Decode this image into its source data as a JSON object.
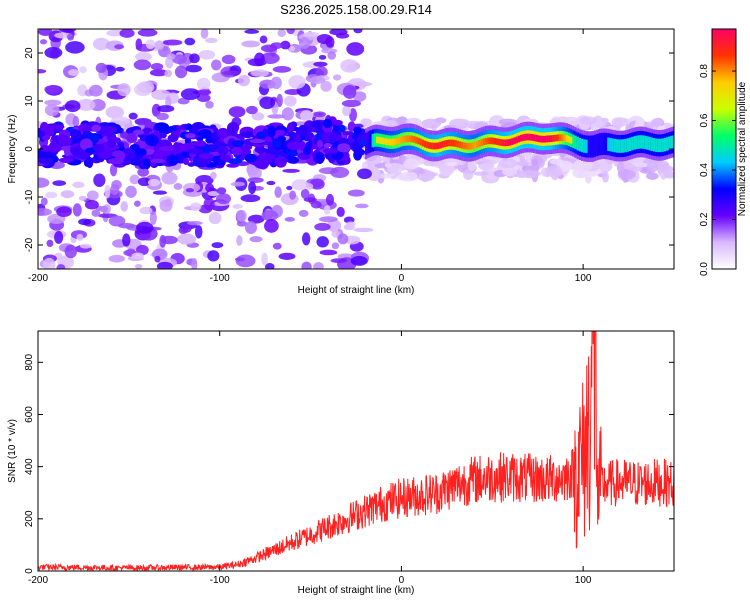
{
  "title": "S236.2025.158.00.29.R14",
  "chart_data": [
    {
      "type": "heatmap",
      "xlabel": "Height of straight line (km)",
      "ylabel": "Frequency (Hz)",
      "xlim": [
        -200,
        150
      ],
      "ylim": [
        -25,
        25
      ],
      "xticks": [
        -200,
        -100,
        0,
        100
      ],
      "yticks": [
        -20,
        -10,
        0,
        10,
        20
      ],
      "colorbar": {
        "label": "Normalized spectral amplitude",
        "range": [
          0.0,
          0.97
        ],
        "ticks": [
          "0.0",
          "0.2",
          "0.4",
          "0.6",
          "0.8"
        ],
        "colors": [
          "#ffffff",
          "#d9b8ff",
          "#6600ff",
          "#0000ff",
          "#00ccff",
          "#00ff66",
          "#ccff00",
          "#ffcc00",
          "#ff3300",
          "#ff0066"
        ]
      },
      "ridge": [
        {
          "x": -200,
          "f": 1.0,
          "amp": 0.25
        },
        {
          "x": -150,
          "f": 1.0,
          "amp": 0.28
        },
        {
          "x": -100,
          "f": 0.5,
          "amp": 0.3
        },
        {
          "x": -80,
          "f": 0.5,
          "amp": 0.35
        },
        {
          "x": -60,
          "f": 1.5,
          "amp": 0.3
        },
        {
          "x": -40,
          "f": 2.0,
          "amp": 0.28
        },
        {
          "x": -20,
          "f": 1.0,
          "amp": 0.3
        },
        {
          "x": -15,
          "f": 1.5,
          "amp": 0.6
        },
        {
          "x": 0,
          "f": 2.0,
          "amp": 0.7
        },
        {
          "x": 20,
          "f": 0.8,
          "amp": 0.85
        },
        {
          "x": 40,
          "f": 1.0,
          "amp": 0.7
        },
        {
          "x": 60,
          "f": 1.8,
          "amp": 0.9
        },
        {
          "x": 80,
          "f": 2.5,
          "amp": 0.92
        },
        {
          "x": 95,
          "f": 1.5,
          "amp": 0.55
        },
        {
          "x": 105,
          "f": 0.5,
          "amp": 0.4
        },
        {
          "x": 120,
          "f": 1.0,
          "amp": 0.5
        },
        {
          "x": 150,
          "f": 1.2,
          "amp": 0.5
        }
      ]
    },
    {
      "type": "line",
      "xlabel": "Height of straight line (km)",
      "ylabel": "SNR (10 * v/v)",
      "xlim": [
        -200,
        150
      ],
      "ylim": [
        0,
        920
      ],
      "xticks": [
        -200,
        -100,
        0,
        100
      ],
      "yticks": [
        0,
        200,
        400,
        600,
        800
      ],
      "color": "#ff2020",
      "series": [
        {
          "x": [
            -200,
            -150,
            -100,
            -90,
            -80,
            -70,
            -60,
            -50,
            -40,
            -30,
            -20,
            -10,
            0,
            10,
            20,
            30,
            40,
            50,
            60,
            70,
            80,
            90,
            95,
            100,
            103,
            105,
            107,
            108,
            110,
            120,
            130,
            140,
            150
          ],
          "y": [
            15,
            12,
            15,
            25,
            50,
            80,
            110,
            140,
            170,
            200,
            230,
            260,
            280,
            290,
            300,
            330,
            350,
            360,
            360,
            355,
            350,
            360,
            380,
            420,
            560,
            800,
            900,
            250,
            330,
            340,
            335,
            340,
            335
          ]
        }
      ]
    }
  ]
}
